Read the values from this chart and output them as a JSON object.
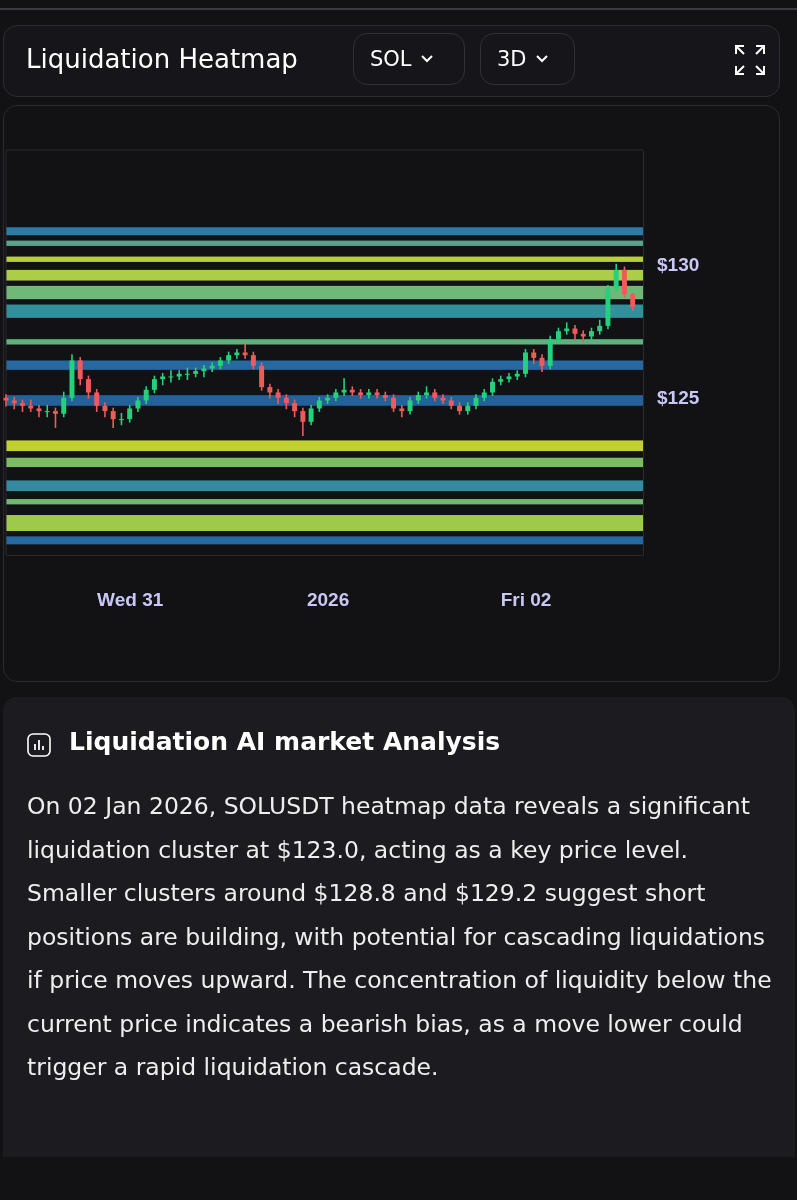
{
  "chart_data": {
    "type": "candlestick",
    "title": "Liquidation Heatmap",
    "annotations": [
      "SOL",
      "3D",
      "Liquidation AI market Analysis",
      "On 02 Jan 2026, SOLUSDT heatmap data reveals a significant liquidation cluster at $123.0, acting as a key price level. Smaller clusters around $128.8 and $129.2 suggest short positions are building, with potential for cascading liquidations if price moves upward. The concentration of liquidity below the current price indicates a bearish bias, as a move lower could trigger a rapid liquidation cascade."
    ],
    "xlim": [
      "2025-12-30T09:00",
      "2026-01-02T14:15"
    ],
    "xticks": [
      {
        "value": "2025-12-31",
        "label": "Wed 31"
      },
      {
        "value": "2026-01-01",
        "label": "2026"
      },
      {
        "value": "2026-01-02",
        "label": "Fri 02"
      }
    ],
    "ylim": [
      119.1,
      134.3
    ],
    "yticks": [
      {
        "value": 125,
        "label": "$125"
      },
      {
        "value": 130,
        "label": "$130"
      }
    ],
    "grid": false,
    "bands": [
      {
        "axis": "y",
        "from": 131.1,
        "to": 131.4,
        "color": "#2f8fc0"
      },
      {
        "axis": "y",
        "from": 130.7,
        "to": 130.9,
        "color": "#5fc3a0"
      },
      {
        "axis": "y",
        "from": 130.1,
        "to": 130.3,
        "color": "#d8f040"
      },
      {
        "axis": "y",
        "from": 129.4,
        "to": 129.8,
        "color": "#c8ee50"
      },
      {
        "axis": "y",
        "from": 128.7,
        "to": 129.2,
        "color": "#7fd68a"
      },
      {
        "axis": "y",
        "from": 128.0,
        "to": 128.5,
        "color": "#3aa6b0"
      },
      {
        "axis": "y",
        "from": 127.0,
        "to": 127.2,
        "color": "#6ccf90"
      },
      {
        "axis": "y",
        "from": 126.05,
        "to": 126.4,
        "color": "#2a78b8"
      },
      {
        "axis": "y",
        "from": 124.7,
        "to": 125.1,
        "color": "#2670b0"
      },
      {
        "axis": "y",
        "from": 123.0,
        "to": 123.4,
        "color": "#e0f535"
      },
      {
        "axis": "y",
        "from": 122.4,
        "to": 122.75,
        "color": "#8fdc70"
      },
      {
        "axis": "y",
        "from": 121.5,
        "to": 121.9,
        "color": "#3ca0b8"
      },
      {
        "axis": "y",
        "from": 121.0,
        "to": 121.2,
        "color": "#80d880"
      },
      {
        "axis": "y",
        "from": 120.0,
        "to": 120.6,
        "color": "#b8ea55"
      },
      {
        "axis": "y",
        "from": 119.5,
        "to": 119.8,
        "color": "#2a78b8"
      }
    ],
    "x": [
      "2025-12-30T09:00",
      "2025-12-30T10:00",
      "2025-12-30T11:00",
      "2025-12-30T12:00",
      "2025-12-30T13:00",
      "2025-12-30T14:00",
      "2025-12-30T15:00",
      "2025-12-30T16:00",
      "2025-12-30T17:00",
      "2025-12-30T18:00",
      "2025-12-30T19:00",
      "2025-12-30T20:00",
      "2025-12-30T21:00",
      "2025-12-30T22:00",
      "2025-12-30T23:00",
      "2025-12-31T00:00",
      "2025-12-31T01:00",
      "2025-12-31T02:00",
      "2025-12-31T03:00",
      "2025-12-31T04:00",
      "2025-12-31T05:00",
      "2025-12-31T06:00",
      "2025-12-31T07:00",
      "2025-12-31T08:00",
      "2025-12-31T09:00",
      "2025-12-31T10:00",
      "2025-12-31T11:00",
      "2025-12-31T12:00",
      "2025-12-31T13:00",
      "2025-12-31T14:00",
      "2025-12-31T15:00",
      "2025-12-31T16:00",
      "2025-12-31T17:00",
      "2025-12-31T18:00",
      "2025-12-31T19:00",
      "2025-12-31T20:00",
      "2025-12-31T21:00",
      "2025-12-31T22:00",
      "2025-12-31T23:00",
      "2026-01-01T00:00",
      "2026-01-01T01:00",
      "2026-01-01T02:00",
      "2026-01-01T03:00",
      "2026-01-01T04:00",
      "2026-01-01T05:00",
      "2026-01-01T06:00",
      "2026-01-01T07:00",
      "2026-01-01T08:00",
      "2026-01-01T09:00",
      "2026-01-01T10:00",
      "2026-01-01T11:00",
      "2026-01-01T12:00",
      "2026-01-01T13:00",
      "2026-01-01T14:00",
      "2026-01-01T15:00",
      "2026-01-01T16:00",
      "2026-01-01T17:00",
      "2026-01-01T18:00",
      "2026-01-01T19:00",
      "2026-01-01T20:00",
      "2026-01-01T21:00",
      "2026-01-01T22:00",
      "2026-01-01T23:00",
      "2026-01-02T00:00",
      "2026-01-02T01:00",
      "2026-01-02T02:00",
      "2026-01-02T03:00",
      "2026-01-02T04:00",
      "2026-01-02T05:00",
      "2026-01-02T06:00",
      "2026-01-02T07:00",
      "2026-01-02T08:00",
      "2026-01-02T09:00",
      "2026-01-02T10:00",
      "2026-01-02T11:00",
      "2026-01-02T12:00",
      "2026-01-02T13:00"
    ],
    "ohlc": [
      [
        125.0,
        125.1,
        124.7,
        124.9
      ],
      [
        124.9,
        125.0,
        124.6,
        124.8
      ],
      [
        124.8,
        124.9,
        124.5,
        124.7
      ],
      [
        124.7,
        124.9,
        124.5,
        124.6
      ],
      [
        124.6,
        124.7,
        124.3,
        124.5
      ],
      [
        124.5,
        124.7,
        124.3,
        124.5
      ],
      [
        124.5,
        124.6,
        123.9,
        124.4
      ],
      [
        124.4,
        125.2,
        124.3,
        125.0
      ],
      [
        125.0,
        126.6,
        124.9,
        126.4
      ],
      [
        126.4,
        126.5,
        125.5,
        125.7
      ],
      [
        125.7,
        125.8,
        125.0,
        125.2
      ],
      [
        125.2,
        125.3,
        124.5,
        124.7
      ],
      [
        124.7,
        124.8,
        124.3,
        124.5
      ],
      [
        124.5,
        124.6,
        123.9,
        124.2
      ],
      [
        124.2,
        124.4,
        124.0,
        124.2
      ],
      [
        124.2,
        124.7,
        124.1,
        124.6
      ],
      [
        124.6,
        125.0,
        124.5,
        124.9
      ],
      [
        124.9,
        125.4,
        124.8,
        125.3
      ],
      [
        125.3,
        125.8,
        125.2,
        125.7
      ],
      [
        125.7,
        125.9,
        125.5,
        125.8
      ],
      [
        125.8,
        126.0,
        125.6,
        125.8
      ],
      [
        125.8,
        126.0,
        125.7,
        125.9
      ],
      [
        125.9,
        126.1,
        125.7,
        125.9
      ],
      [
        125.9,
        126.1,
        125.8,
        126.0
      ],
      [
        126.0,
        126.2,
        125.8,
        126.1
      ],
      [
        126.1,
        126.3,
        126.0,
        126.2
      ],
      [
        126.2,
        126.5,
        126.1,
        126.4
      ],
      [
        126.4,
        126.7,
        126.3,
        126.6
      ],
      [
        126.6,
        126.8,
        126.5,
        126.7
      ],
      [
        126.7,
        127.0,
        126.5,
        126.6
      ],
      [
        126.6,
        126.7,
        126.1,
        126.2
      ],
      [
        126.2,
        126.3,
        125.3,
        125.4
      ],
      [
        125.4,
        125.5,
        125.0,
        125.2
      ],
      [
        125.2,
        125.3,
        124.8,
        125.0
      ],
      [
        125.0,
        125.1,
        124.6,
        124.8
      ],
      [
        124.8,
        124.9,
        124.3,
        124.5
      ],
      [
        124.5,
        124.6,
        123.6,
        124.1
      ],
      [
        124.1,
        124.7,
        124.0,
        124.6
      ],
      [
        124.6,
        125.0,
        124.5,
        124.9
      ],
      [
        124.9,
        125.1,
        124.8,
        125.0
      ],
      [
        125.0,
        125.3,
        124.9,
        125.2
      ],
      [
        125.2,
        125.7,
        125.1,
        125.3
      ],
      [
        125.3,
        125.4,
        125.1,
        125.2
      ],
      [
        125.2,
        125.3,
        125.0,
        125.1
      ],
      [
        125.1,
        125.3,
        125.0,
        125.2
      ],
      [
        125.2,
        125.3,
        125.0,
        125.1
      ],
      [
        125.1,
        125.2,
        124.9,
        125.0
      ],
      [
        125.0,
        125.1,
        124.5,
        124.6
      ],
      [
        124.6,
        124.7,
        124.3,
        124.5
      ],
      [
        124.5,
        125.0,
        124.4,
        124.9
      ],
      [
        124.9,
        125.2,
        124.8,
        125.1
      ],
      [
        125.1,
        125.4,
        125.0,
        125.2
      ],
      [
        125.2,
        125.3,
        124.9,
        125.0
      ],
      [
        125.0,
        125.1,
        124.8,
        124.9
      ],
      [
        124.9,
        125.0,
        124.6,
        124.7
      ],
      [
        124.7,
        124.8,
        124.4,
        124.5
      ],
      [
        124.5,
        124.8,
        124.4,
        124.7
      ],
      [
        124.7,
        125.1,
        124.6,
        125.0
      ],
      [
        125.0,
        125.3,
        124.9,
        125.2
      ],
      [
        125.2,
        125.7,
        125.1,
        125.6
      ],
      [
        125.6,
        125.8,
        125.5,
        125.7
      ],
      [
        125.7,
        125.9,
        125.6,
        125.8
      ],
      [
        125.8,
        126.0,
        125.7,
        125.9
      ],
      [
        125.9,
        126.8,
        125.8,
        126.7
      ],
      [
        126.7,
        126.8,
        126.3,
        126.5
      ],
      [
        126.5,
        126.6,
        126.0,
        126.2
      ],
      [
        126.2,
        127.3,
        126.1,
        127.2
      ],
      [
        127.2,
        127.6,
        127.1,
        127.5
      ],
      [
        127.5,
        127.8,
        127.4,
        127.6
      ],
      [
        127.6,
        127.7,
        127.2,
        127.4
      ],
      [
        127.4,
        127.5,
        127.1,
        127.3
      ],
      [
        127.3,
        127.6,
        127.2,
        127.5
      ],
      [
        127.5,
        127.9,
        127.4,
        127.7
      ],
      [
        127.7,
        129.2,
        127.6,
        129.1
      ],
      [
        129.1,
        130.0,
        129.0,
        129.8
      ],
      [
        129.8,
        129.9,
        128.8,
        128.9
      ],
      [
        128.9,
        128.9,
        128.3,
        128.4
      ]
    ]
  }
}
